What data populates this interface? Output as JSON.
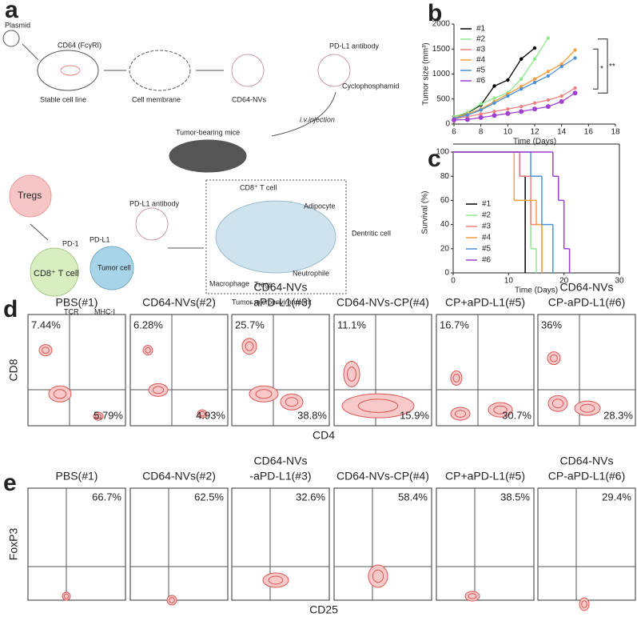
{
  "panel_labels": [
    "a",
    "b",
    "c",
    "d",
    "e"
  ],
  "diagram": {
    "plasmid": "Plasmid",
    "receptor": "CD64 (FcγRI)",
    "stable": "Stable cell line",
    "membrane": "Cell membrane",
    "nvs": "CD64-NVs",
    "antibody": "PD-L1 antibody",
    "drug": "Cyclophosphamid",
    "injection": "i.v.injection",
    "mice": "Tumor-bearing mice",
    "tregs": "Tregs",
    "antibody2": "PD-L1 antibody",
    "pd1": "PD-1",
    "pdl1": "PD-L1",
    "tcell": "CD8⁺ T cell",
    "tumor": "Tumor cell",
    "tcr": "TCR",
    "mhc": "MHC-I",
    "tme_tcell": "CD8⁺ T cell",
    "adipocyte": "Adipocyte",
    "dendritic": "Dentritic cell",
    "macrophage": "Macrophage",
    "tme_tregs": "Tregs",
    "neutrophile": "Neutrophile",
    "tme": "Tumor microenvironment"
  },
  "chart_data": [
    {
      "type": "line",
      "xlabel": "Time (Days)",
      "ylabel": "Tumor size (mm³)",
      "x": [
        6,
        7,
        8,
        9,
        10,
        11,
        12,
        13,
        14,
        15
      ],
      "series": [
        {
          "name": "#1",
          "color": "#000000",
          "values": [
            150,
            220,
            380,
            760,
            880,
            1300,
            1520,
            null,
            null,
            null
          ]
        },
        {
          "name": "#2",
          "color": "#8ee88e",
          "values": [
            150,
            230,
            400,
            520,
            620,
            900,
            1300,
            1720,
            null,
            null
          ]
        },
        {
          "name": "#3",
          "color": "#f08080",
          "values": [
            100,
            150,
            200,
            250,
            300,
            350,
            420,
            480,
            560,
            720
          ]
        },
        {
          "name": "#4",
          "color": "#f5a142",
          "values": [
            120,
            200,
            300,
            450,
            600,
            750,
            900,
            1050,
            1200,
            1480
          ]
        },
        {
          "name": "#5",
          "color": "#4a90d9",
          "values": [
            110,
            180,
            280,
            420,
            560,
            700,
            830,
            960,
            1150,
            1320
          ]
        },
        {
          "name": "#6",
          "color": "#a040d0",
          "values": [
            80,
            90,
            130,
            170,
            210,
            250,
            300,
            350,
            450,
            620
          ]
        }
      ],
      "xlim": [
        6,
        18
      ],
      "xticks": [
        6,
        8,
        10,
        12,
        14,
        16,
        18
      ],
      "ylim": [
        0,
        2000
      ],
      "yticks": [
        0,
        500,
        1000,
        1500,
        2000
      ],
      "annotations": [
        "*",
        "**"
      ]
    },
    {
      "type": "step",
      "xlabel": "Time (Days)",
      "ylabel": "Survival (%)",
      "series": [
        {
          "name": "#1",
          "color": "#000000",
          "x": [
            0,
            12,
            13
          ],
          "values": [
            100,
            80,
            0
          ]
        },
        {
          "name": "#2",
          "color": "#8ee88e",
          "x": [
            0,
            11,
            14,
            15
          ],
          "values": [
            100,
            60,
            20,
            0
          ]
        },
        {
          "name": "#3",
          "color": "#f08080",
          "x": [
            0,
            12,
            14,
            16
          ],
          "values": [
            100,
            80,
            40,
            0
          ]
        },
        {
          "name": "#4",
          "color": "#f5a142",
          "x": [
            0,
            11,
            15,
            16
          ],
          "values": [
            100,
            60,
            40,
            0
          ]
        },
        {
          "name": "#5",
          "color": "#4a90d9",
          "x": [
            0,
            14,
            16,
            18
          ],
          "values": [
            100,
            80,
            40,
            0
          ]
        },
        {
          "name": "#6",
          "color": "#a040d0",
          "x": [
            0,
            18,
            19,
            20,
            21
          ],
          "values": [
            100,
            80,
            60,
            20,
            0
          ]
        }
      ],
      "xlim": [
        0,
        30
      ],
      "xticks": [
        0,
        10,
        20,
        30
      ],
      "ylim": [
        0,
        100
      ],
      "yticks": [
        0,
        20,
        40,
        60,
        80,
        100
      ]
    }
  ],
  "flow": [
    {
      "ylabel": "CD8",
      "xlabel": "CD4",
      "plots": [
        {
          "title": [
            "PBS(#1)"
          ],
          "percents": [
            "7.44%",
            "5.79%"
          ]
        },
        {
          "title": [
            "CD64-NVs(#2)"
          ],
          "percents": [
            "6.28%",
            "4.93%"
          ]
        },
        {
          "title": [
            "CD64-NVs",
            "-aPD-L1(#3)"
          ],
          "percents": [
            "25.7%",
            "38.8%"
          ]
        },
        {
          "title": [
            "CD64-NVs-CP(#4)"
          ],
          "percents": [
            "11.1%",
            "15.9%"
          ]
        },
        {
          "title": [
            "CP+aPD-L1(#5)"
          ],
          "percents": [
            "16.7%",
            "30.7%"
          ]
        },
        {
          "title": [
            "CD64-NVs",
            "CP-aPD-L1(#6)"
          ],
          "percents": [
            "36%",
            "28.3%"
          ]
        }
      ]
    },
    {
      "ylabel": "FoxP3",
      "xlabel": "CD25",
      "plots": [
        {
          "title": [
            "PBS(#1)"
          ],
          "percents": [
            "66.7%"
          ]
        },
        {
          "title": [
            "CD64-NVs(#2)"
          ],
          "percents": [
            "62.5%"
          ]
        },
        {
          "title": [
            "CD64-NVs",
            "-aPD-L1(#3)"
          ],
          "percents": [
            "32.6%"
          ]
        },
        {
          "title": [
            "CD64-NVs-CP(#4)"
          ],
          "percents": [
            "58.4%"
          ]
        },
        {
          "title": [
            "CP+aPD-L1(#5)"
          ],
          "percents": [
            "38.5%"
          ]
        },
        {
          "title": [
            "CD64-NVs",
            "CP-aPD-L1(#6)"
          ],
          "percents": [
            "29.4%"
          ]
        }
      ]
    }
  ]
}
